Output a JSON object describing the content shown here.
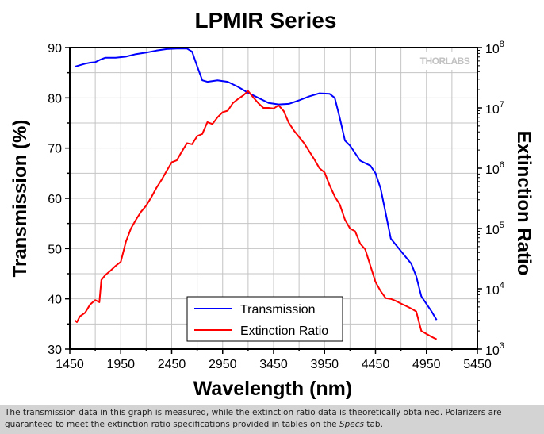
{
  "chart_data": {
    "type": "line",
    "title": "LPMIR Series",
    "xlabel": "Wavelength (nm)",
    "ylabel": "Transmission (%)",
    "y2label": "Extinction Ratio",
    "xlim": [
      1450,
      5450
    ],
    "ylim": [
      30,
      90
    ],
    "y2lim": [
      1000,
      100000000
    ],
    "y2scale": "log",
    "xticks": [
      "1450",
      "1950",
      "2450",
      "2950",
      "3450",
      "3950",
      "4450",
      "4950",
      "5450"
    ],
    "yticks": [
      "30",
      "40",
      "50",
      "60",
      "70",
      "80",
      "90"
    ],
    "y2ticks": [
      {
        "base": "10",
        "exp": "3"
      },
      {
        "base": "10",
        "exp": "4"
      },
      {
        "base": "10",
        "exp": "5"
      },
      {
        "base": "10",
        "exp": "6"
      },
      {
        "base": "10",
        "exp": "7"
      },
      {
        "base": "10",
        "exp": "8"
      }
    ],
    "grid": true,
    "legend_position": "bottom-center",
    "series": [
      {
        "name": "Transmission",
        "axis": "left",
        "color": "#0000ff",
        "x": [
          1500,
          1550,
          1600,
          1650,
          1700,
          1750,
          1800,
          1900,
          2000,
          2100,
          2200,
          2300,
          2400,
          2500,
          2600,
          2650,
          2700,
          2750,
          2800,
          2900,
          3000,
          3100,
          3200,
          3300,
          3400,
          3500,
          3600,
          3700,
          3800,
          3900,
          4000,
          4050,
          4100,
          4150,
          4200,
          4300,
          4400,
          4450,
          4500,
          4550,
          4600,
          4700,
          4800,
          4850,
          4900,
          5000,
          5050
        ],
        "values": [
          86.2,
          86.5,
          86.8,
          87.0,
          87.1,
          87.6,
          88.0,
          88.0,
          88.2,
          88.7,
          89.0,
          89.4,
          89.7,
          89.8,
          89.8,
          89.2,
          86.3,
          83.5,
          83.2,
          83.5,
          83.2,
          82.2,
          81.0,
          80.0,
          79.0,
          78.7,
          78.8,
          79.5,
          80.3,
          80.9,
          80.8,
          80.0,
          76.0,
          71.5,
          70.5,
          67.5,
          66.5,
          65.0,
          62.0,
          57.0,
          52.0,
          49.5,
          47.0,
          44.5,
          40.5,
          37.5,
          35.8
        ]
      },
      {
        "name": "Extinction Ratio",
        "axis": "right",
        "color": "#ff0000",
        "x": [
          1500,
          1520,
          1550,
          1600,
          1650,
          1700,
          1740,
          1760,
          1800,
          1850,
          1900,
          1950,
          2000,
          2050,
          2100,
          2150,
          2200,
          2250,
          2300,
          2350,
          2400,
          2450,
          2500,
          2550,
          2600,
          2650,
          2700,
          2750,
          2800,
          2850,
          2900,
          2950,
          3000,
          3050,
          3100,
          3150,
          3200,
          3250,
          3300,
          3350,
          3400,
          3450,
          3500,
          3550,
          3600,
          3650,
          3700,
          3750,
          3800,
          3850,
          3900,
          3950,
          4000,
          4050,
          4100,
          4150,
          4200,
          4250,
          4300,
          4350,
          4400,
          4450,
          4500,
          4550,
          4600,
          4650,
          4700,
          4750,
          4800,
          4850,
          4900,
          5000,
          5050
        ],
        "values": [
          3000,
          2800,
          3500,
          4000,
          5500,
          6500,
          6000,
          14000,
          17000,
          20000,
          24000,
          28000,
          60000,
          100000,
          140000,
          190000,
          240000,
          330000,
          470000,
          640000,
          900000,
          1250000,
          1350000,
          1900000,
          2600000,
          2500000,
          3400000,
          3700000,
          5800000,
          5400000,
          7000000,
          8500000,
          9000000,
          12000000,
          14000000,
          16000000,
          19000000,
          15000000,
          12000000,
          10000000,
          10000000,
          9800000,
          11000000,
          8800000,
          5600000,
          4200000,
          3300000,
          2600000,
          1900000,
          1400000,
          1000000,
          850000,
          520000,
          340000,
          250000,
          140000,
          100000,
          90000,
          56000,
          45000,
          24000,
          13000,
          9200,
          7000,
          6800,
          6300,
          5700,
          5200,
          4700,
          4200,
          2000,
          1600,
          1450
        ]
      }
    ]
  },
  "logo_text": "THORLABS",
  "caption": {
    "before_specs": "The transmission data in this graph is measured, while the extinction ratio data is theoretically obtained. Polarizers are guaranteed to meet the extinction ratio specifications provided in tables on the ",
    "specs_word": "Specs",
    "after_specs": " tab."
  }
}
